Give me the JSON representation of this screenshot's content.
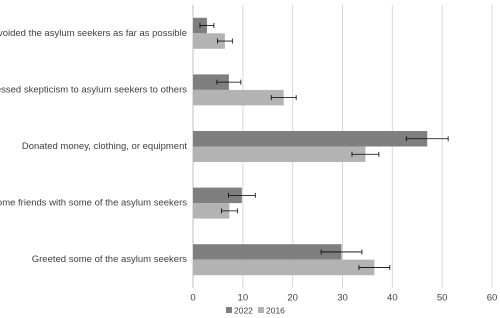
{
  "chart_data": {
    "type": "bar",
    "orientation": "horizontal",
    "categories": [
      "Avoided the asylum seekers as far as possible",
      "Expressed skepticism to asylum seekers to others",
      "Donated money, clothing, or equipment",
      "Become friends with some of the asylum seekers",
      "Greeted some of the asylum seekers"
    ],
    "series": [
      {
        "name": "2022",
        "color": "#7f7f7f",
        "values": [
          2.8,
          7.2,
          47,
          9.8,
          29.8
        ],
        "errors": [
          1.4,
          2.4,
          4.2,
          2.7,
          4.1
        ]
      },
      {
        "name": "2016",
        "color": "#b3b3b3",
        "values": [
          6.4,
          18.2,
          34.6,
          7.3,
          36.4
        ],
        "errors": [
          1.5,
          2.5,
          2.7,
          1.6,
          3.1
        ]
      }
    ],
    "xlim": [
      0,
      60
    ],
    "xticks": [
      0,
      10,
      20,
      30,
      40,
      50,
      60
    ],
    "grid": true,
    "legend": "bottom"
  }
}
